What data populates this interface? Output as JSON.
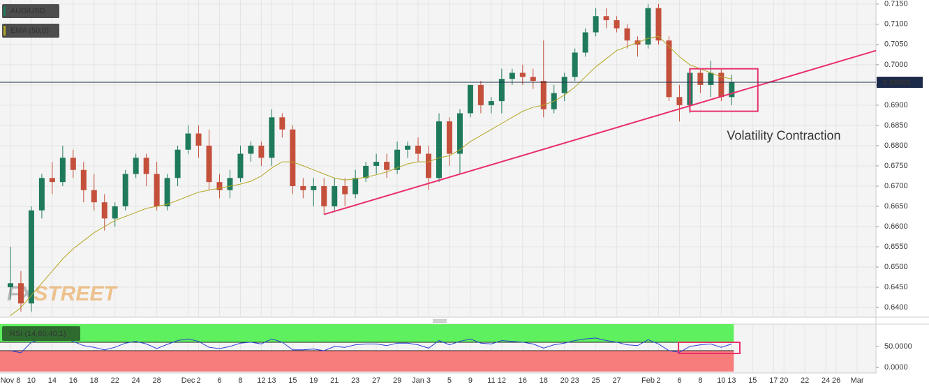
{
  "chart_data": {
    "type": "candlestick",
    "x": [
      0,
      1,
      2,
      3,
      4,
      5,
      6,
      7,
      8,
      9,
      10,
      11,
      12,
      13,
      14,
      15,
      16,
      17,
      18,
      19,
      20,
      21,
      22,
      23,
      24,
      25,
      26,
      27,
      28,
      29,
      30,
      31,
      32,
      33,
      34,
      35,
      36,
      37,
      38,
      39,
      40,
      41,
      42,
      43,
      44,
      45,
      46,
      47,
      48,
      49,
      50,
      51,
      52,
      53,
      54,
      55,
      56,
      57,
      58,
      59,
      60,
      61,
      62,
      63,
      64,
      65,
      66,
      67,
      68,
      69
    ],
    "series": [
      {
        "name": "AUD/USD",
        "up_color": "#1f7a5c",
        "down_color": "#c4503c",
        "open": [
          0.645,
          0.646,
          0.641,
          0.664,
          0.672,
          0.671,
          0.677,
          0.674,
          0.669,
          0.666,
          0.662,
          0.665,
          0.673,
          0.677,
          0.673,
          0.665,
          0.672,
          0.679,
          0.683,
          0.68,
          0.671,
          0.669,
          0.672,
          0.678,
          0.68,
          0.677,
          0.687,
          0.684,
          0.67,
          0.669,
          0.67,
          0.665,
          0.67,
          0.668,
          0.672,
          0.675,
          0.676,
          0.674,
          0.679,
          0.68,
          0.678,
          0.672,
          0.686,
          0.678,
          0.688,
          0.695,
          0.69,
          0.691,
          0.6965,
          0.698,
          0.697,
          0.696,
          0.689,
          0.693,
          0.697,
          0.703,
          0.708,
          0.712,
          0.711,
          0.709,
          0.706,
          0.705,
          0.714,
          0.706,
          0.692,
          0.69,
          0.698,
          0.695,
          0.698,
          0.692
        ],
        "high": [
          0.655,
          0.649,
          0.665,
          0.673,
          0.676,
          0.68,
          0.679,
          0.676,
          0.673,
          0.668,
          0.666,
          0.674,
          0.678,
          0.678,
          0.676,
          0.673,
          0.68,
          0.685,
          0.685,
          0.684,
          0.673,
          0.674,
          0.68,
          0.681,
          0.681,
          0.689,
          0.688,
          0.685,
          0.672,
          0.672,
          0.672,
          0.672,
          0.672,
          0.674,
          0.676,
          0.678,
          0.678,
          0.681,
          0.681,
          0.682,
          0.68,
          0.688,
          0.687,
          0.689,
          0.695,
          0.696,
          0.692,
          0.699,
          0.699,
          0.7,
          0.699,
          0.706,
          0.695,
          0.698,
          0.704,
          0.709,
          0.714,
          0.714,
          0.712,
          0.71,
          0.707,
          0.715,
          0.715,
          0.707,
          0.695,
          0.699,
          0.699,
          0.701,
          0.699,
          0.6975
        ],
        "low": [
          0.642,
          0.639,
          0.639,
          0.662,
          0.668,
          0.67,
          0.672,
          0.666,
          0.664,
          0.659,
          0.66,
          0.664,
          0.672,
          0.67,
          0.664,
          0.664,
          0.67,
          0.678,
          0.677,
          0.669,
          0.667,
          0.667,
          0.671,
          0.676,
          0.675,
          0.675,
          0.682,
          0.668,
          0.667,
          0.665,
          0.663,
          0.664,
          0.665,
          0.667,
          0.671,
          0.673,
          0.672,
          0.673,
          0.677,
          0.676,
          0.669,
          0.671,
          0.675,
          0.673,
          0.687,
          0.688,
          0.688,
          0.688,
          0.695,
          0.695,
          0.694,
          0.687,
          0.688,
          0.691,
          0.696,
          0.702,
          0.707,
          0.709,
          0.708,
          0.704,
          0.702,
          0.704,
          0.705,
          0.691,
          0.686,
          0.688,
          0.693,
          0.692,
          0.691,
          0.69
        ],
        "close": [
          0.646,
          0.641,
          0.664,
          0.672,
          0.671,
          0.677,
          0.674,
          0.669,
          0.666,
          0.662,
          0.665,
          0.673,
          0.677,
          0.673,
          0.665,
          0.672,
          0.679,
          0.683,
          0.68,
          0.671,
          0.669,
          0.672,
          0.678,
          0.68,
          0.677,
          0.687,
          0.684,
          0.67,
          0.669,
          0.67,
          0.665,
          0.67,
          0.668,
          0.672,
          0.675,
          0.676,
          0.674,
          0.679,
          0.68,
          0.678,
          0.672,
          0.686,
          0.678,
          0.688,
          0.695,
          0.69,
          0.691,
          0.6965,
          0.698,
          0.697,
          0.696,
          0.689,
          0.693,
          0.697,
          0.703,
          0.708,
          0.712,
          0.711,
          0.709,
          0.706,
          0.705,
          0.714,
          0.706,
          0.692,
          0.69,
          0.698,
          0.695,
          0.698,
          0.692,
          0.6957
        ]
      },
      {
        "name": "EMA (50,0)",
        "color": "#b3a624",
        "values": [
          0.638,
          0.64,
          0.643,
          0.646,
          0.649,
          0.652,
          0.6545,
          0.6565,
          0.6585,
          0.66,
          0.6615,
          0.6625,
          0.6635,
          0.6645,
          0.665,
          0.6655,
          0.6665,
          0.6675,
          0.6685,
          0.669,
          0.6695,
          0.67,
          0.6705,
          0.6712,
          0.6725,
          0.6745,
          0.676,
          0.676,
          0.675,
          0.674,
          0.673,
          0.672,
          0.6715,
          0.6718,
          0.6722,
          0.6728,
          0.6735,
          0.6745,
          0.6755,
          0.676,
          0.676,
          0.677,
          0.6775,
          0.679,
          0.681,
          0.6825,
          0.684,
          0.6855,
          0.687,
          0.6885,
          0.6895,
          0.69,
          0.691,
          0.6925,
          0.6945,
          0.697,
          0.6995,
          0.7015,
          0.7035,
          0.7045,
          0.7055,
          0.7065,
          0.707,
          0.7045,
          0.702,
          0.7,
          0.699,
          0.698,
          0.697,
          0.6965
        ]
      }
    ],
    "xlim": [
      -1,
      82.8
    ],
    "xticks": [
      {
        "value": 0,
        "label": "Nov 8"
      },
      {
        "value": 2,
        "label": "10"
      },
      {
        "value": 4,
        "label": "14"
      },
      {
        "value": 6,
        "label": "16"
      },
      {
        "value": 8,
        "label": "18"
      },
      {
        "value": 10,
        "label": "22"
      },
      {
        "value": 12,
        "label": "24"
      },
      {
        "value": 14,
        "label": "28"
      },
      {
        "value": 17,
        "label": "Dec"
      },
      {
        "value": 18,
        "label": "2"
      },
      {
        "value": 20,
        "label": "6"
      },
      {
        "value": 22,
        "label": "8"
      },
      {
        "value": 24,
        "label": "12"
      },
      {
        "value": 25,
        "label": "13"
      },
      {
        "value": 27,
        "label": "15"
      },
      {
        "value": 29,
        "label": "19"
      },
      {
        "value": 31,
        "label": "21"
      },
      {
        "value": 33,
        "label": "23"
      },
      {
        "value": 35,
        "label": "27"
      },
      {
        "value": 37,
        "label": "29"
      },
      {
        "value": 39,
        "label": "Jan"
      },
      {
        "value": 40,
        "label": "3"
      },
      {
        "value": 42,
        "label": "5"
      },
      {
        "value": 44,
        "label": "9"
      },
      {
        "value": 46,
        "label": "11"
      },
      {
        "value": 47,
        "label": "12"
      },
      {
        "value": 49,
        "label": "16"
      },
      {
        "value": 51,
        "label": "18"
      },
      {
        "value": 53,
        "label": "20"
      },
      {
        "value": 54,
        "label": "23"
      },
      {
        "value": 56,
        "label": "25"
      },
      {
        "value": 58,
        "label": "27"
      },
      {
        "value": 61,
        "label": "Feb"
      },
      {
        "value": 62,
        "label": "2"
      },
      {
        "value": 64,
        "label": "6"
      },
      {
        "value": 66,
        "label": "8"
      },
      {
        "value": 68,
        "label": "10"
      },
      {
        "value": 69,
        "label": "13"
      },
      {
        "value": 71,
        "label": "15"
      },
      {
        "value": 73,
        "label": "17"
      },
      {
        "value": 74,
        "label": "20"
      },
      {
        "value": 76,
        "label": "22"
      },
      {
        "value": 78,
        "label": "24"
      },
      {
        "value": 79,
        "label": "26"
      },
      {
        "value": 81,
        "label": "Mar"
      }
    ],
    "ylim": [
      0.6376,
      0.716
    ],
    "yticks": [
      {
        "value": 0.64,
        "label": "0.6400"
      },
      {
        "value": 0.645,
        "label": "0.6450"
      },
      {
        "value": 0.65,
        "label": "0.6500"
      },
      {
        "value": 0.655,
        "label": "0.6550"
      },
      {
        "value": 0.66,
        "label": "0.6600"
      },
      {
        "value": 0.665,
        "label": "0.6650"
      },
      {
        "value": 0.67,
        "label": "0.6700"
      },
      {
        "value": 0.675,
        "label": "0.6750"
      },
      {
        "value": 0.68,
        "label": "0.6800"
      },
      {
        "value": 0.685,
        "label": "0.6850"
      },
      {
        "value": 0.69,
        "label": "0.6900"
      },
      {
        "value": 0.695,
        "label": "0.6950"
      },
      {
        "value": 0.7,
        "label": "0.7000"
      },
      {
        "value": 0.705,
        "label": "0.7050"
      },
      {
        "value": 0.71,
        "label": "0.7100"
      },
      {
        "value": 0.715,
        "label": "0.7150"
      }
    ],
    "last_price": {
      "value": 0.69566,
      "label": "0.69566"
    },
    "trendline": {
      "x": [
        30,
        82.8
      ],
      "y": [
        0.663,
        0.7035
      ],
      "color": "#e8316b"
    },
    "annotation": {
      "text": "Volatility Contraction",
      "x": [
        65,
        71.5
      ],
      "y": [
        0.6885,
        0.699
      ],
      "color": "#e8316b"
    },
    "watermark": [
      "FX",
      "STREET"
    ],
    "rsi": {
      "name": "RSI (14,60,40,1)",
      "color": "#2b3fd6",
      "values": [
        40,
        35,
        60,
        68,
        66,
        70,
        62,
        52,
        48,
        42,
        48,
        58,
        62,
        56,
        45,
        55,
        64,
        68,
        62,
        48,
        45,
        50,
        58,
        60,
        56,
        68,
        60,
        42,
        42,
        44,
        40,
        50,
        48,
        54,
        56,
        56,
        52,
        58,
        58,
        54,
        46,
        64,
        54,
        62,
        68,
        58,
        56,
        64,
        62,
        60,
        56,
        46,
        54,
        58,
        64,
        68,
        70,
        64,
        60,
        54,
        52,
        66,
        56,
        40,
        36,
        50,
        54,
        56,
        48,
        56
      ],
      "ylim": [
        -13,
        103
      ],
      "yticks": [
        {
          "value": 50,
          "label": "50.0000"
        },
        {
          "value": 0,
          "label": "0.0000"
        }
      ],
      "levels": [
        60,
        40
      ]
    }
  }
}
